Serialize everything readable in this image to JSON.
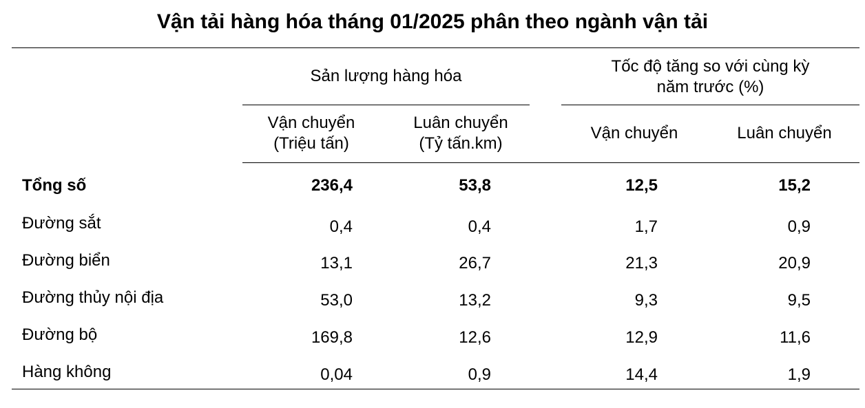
{
  "title": "Vận tải hàng hóa tháng 01/2025 phân theo ngành vận tải",
  "header": {
    "group1": "Sản lượng hàng hóa",
    "group2_line1": "Tốc độ tăng so với cùng kỳ",
    "group2_line2": "năm trước (%)",
    "col1_line1": "Vận chuyển",
    "col1_line2": "(Triệu tấn)",
    "col2_line1": "Luân chuyển",
    "col2_line2": "(Tỷ tấn.km)",
    "col3": "Vận chuyển",
    "col4": "Luân chuyển"
  },
  "rows": [
    {
      "label": "Tổng số",
      "v1": "236,4",
      "v2": "53,8",
      "v3": "12,5",
      "v4": "15,2"
    },
    {
      "label": "Đường sắt",
      "v1": "0,4",
      "v2": "0,4",
      "v3": "1,7",
      "v4": "0,9"
    },
    {
      "label": "Đường biển",
      "v1": "13,1",
      "v2": "26,7",
      "v3": "21,3",
      "v4": "20,9"
    },
    {
      "label": "Đường thủy nội địa",
      "v1": "53,0",
      "v2": "13,2",
      "v3": "9,3",
      "v4": "9,5"
    },
    {
      "label": "Đường bộ",
      "v1": "169,8",
      "v2": "12,6",
      "v3": "12,9",
      "v4": "11,6"
    },
    {
      "label": "Hàng không",
      "v1": "0,04",
      "v2": "0,9",
      "v3": "14,4",
      "v4": "1,9"
    }
  ]
}
